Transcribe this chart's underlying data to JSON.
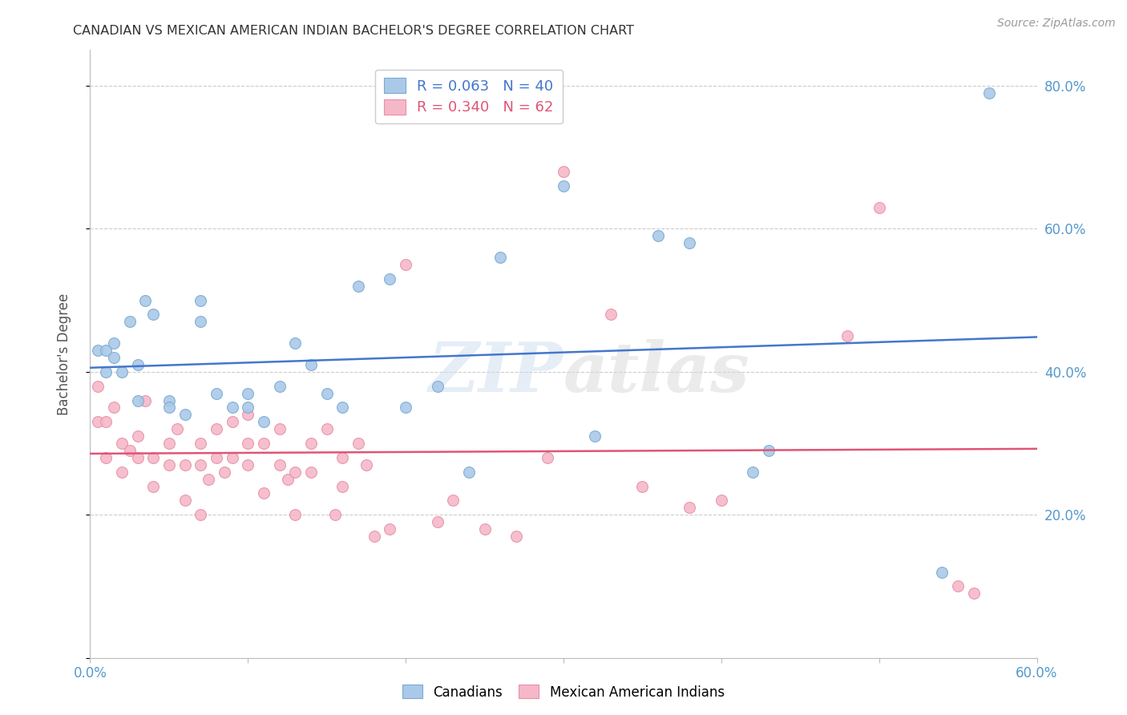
{
  "title": "CANADIAN VS MEXICAN AMERICAN INDIAN BACHELOR'S DEGREE CORRELATION CHART",
  "source": "Source: ZipAtlas.com",
  "ylabel": "Bachelor's Degree",
  "xlim": [
    0.0,
    0.6
  ],
  "ylim": [
    0.0,
    0.85
  ],
  "xticks": [
    0.0,
    0.1,
    0.2,
    0.3,
    0.4,
    0.5,
    0.6
  ],
  "yticks": [
    0.0,
    0.2,
    0.4,
    0.6,
    0.8
  ],
  "blue_R": 0.063,
  "blue_N": 40,
  "pink_R": 0.34,
  "pink_N": 62,
  "blue_label": "Canadians",
  "pink_label": "Mexican American Indians",
  "blue_color": "#aac9e8",
  "pink_color": "#f5b8c8",
  "blue_edge": "#7aaad0",
  "pink_edge": "#e890a8",
  "trend_blue": "#4477cc",
  "trend_pink": "#e05575",
  "blue_points_x": [
    0.005,
    0.01,
    0.01,
    0.015,
    0.015,
    0.02,
    0.025,
    0.03,
    0.03,
    0.035,
    0.04,
    0.05,
    0.05,
    0.06,
    0.07,
    0.07,
    0.08,
    0.09,
    0.1,
    0.1,
    0.11,
    0.12,
    0.13,
    0.14,
    0.15,
    0.16,
    0.17,
    0.19,
    0.2,
    0.22,
    0.24,
    0.26,
    0.3,
    0.32,
    0.36,
    0.38,
    0.42,
    0.43,
    0.54,
    0.57
  ],
  "blue_points_y": [
    0.43,
    0.43,
    0.4,
    0.44,
    0.42,
    0.4,
    0.47,
    0.36,
    0.41,
    0.5,
    0.48,
    0.36,
    0.35,
    0.34,
    0.5,
    0.47,
    0.37,
    0.35,
    0.37,
    0.35,
    0.33,
    0.38,
    0.44,
    0.41,
    0.37,
    0.35,
    0.52,
    0.53,
    0.35,
    0.38,
    0.26,
    0.56,
    0.66,
    0.31,
    0.59,
    0.58,
    0.26,
    0.29,
    0.12,
    0.79
  ],
  "pink_points_x": [
    0.005,
    0.005,
    0.01,
    0.01,
    0.015,
    0.02,
    0.02,
    0.025,
    0.03,
    0.03,
    0.035,
    0.04,
    0.04,
    0.05,
    0.05,
    0.055,
    0.06,
    0.06,
    0.07,
    0.07,
    0.07,
    0.075,
    0.08,
    0.08,
    0.085,
    0.09,
    0.09,
    0.1,
    0.1,
    0.1,
    0.11,
    0.11,
    0.12,
    0.12,
    0.125,
    0.13,
    0.13,
    0.14,
    0.14,
    0.15,
    0.155,
    0.16,
    0.16,
    0.17,
    0.175,
    0.18,
    0.19,
    0.2,
    0.22,
    0.23,
    0.25,
    0.27,
    0.29,
    0.3,
    0.33,
    0.35,
    0.38,
    0.4,
    0.48,
    0.5,
    0.55,
    0.56
  ],
  "pink_points_y": [
    0.38,
    0.33,
    0.33,
    0.28,
    0.35,
    0.3,
    0.26,
    0.29,
    0.28,
    0.31,
    0.36,
    0.28,
    0.24,
    0.3,
    0.27,
    0.32,
    0.22,
    0.27,
    0.3,
    0.27,
    0.2,
    0.25,
    0.32,
    0.28,
    0.26,
    0.33,
    0.28,
    0.34,
    0.3,
    0.27,
    0.3,
    0.23,
    0.32,
    0.27,
    0.25,
    0.26,
    0.2,
    0.3,
    0.26,
    0.32,
    0.2,
    0.28,
    0.24,
    0.3,
    0.27,
    0.17,
    0.18,
    0.55,
    0.19,
    0.22,
    0.18,
    0.17,
    0.28,
    0.68,
    0.48,
    0.24,
    0.21,
    0.22,
    0.45,
    0.63,
    0.1,
    0.09
  ],
  "watermark_zip": "ZIP",
  "watermark_atlas": "atlas",
  "background_color": "#ffffff",
  "grid_color": "#cccccc",
  "tick_color": "#5599cc",
  "title_color": "#333333",
  "marker_size": 100
}
